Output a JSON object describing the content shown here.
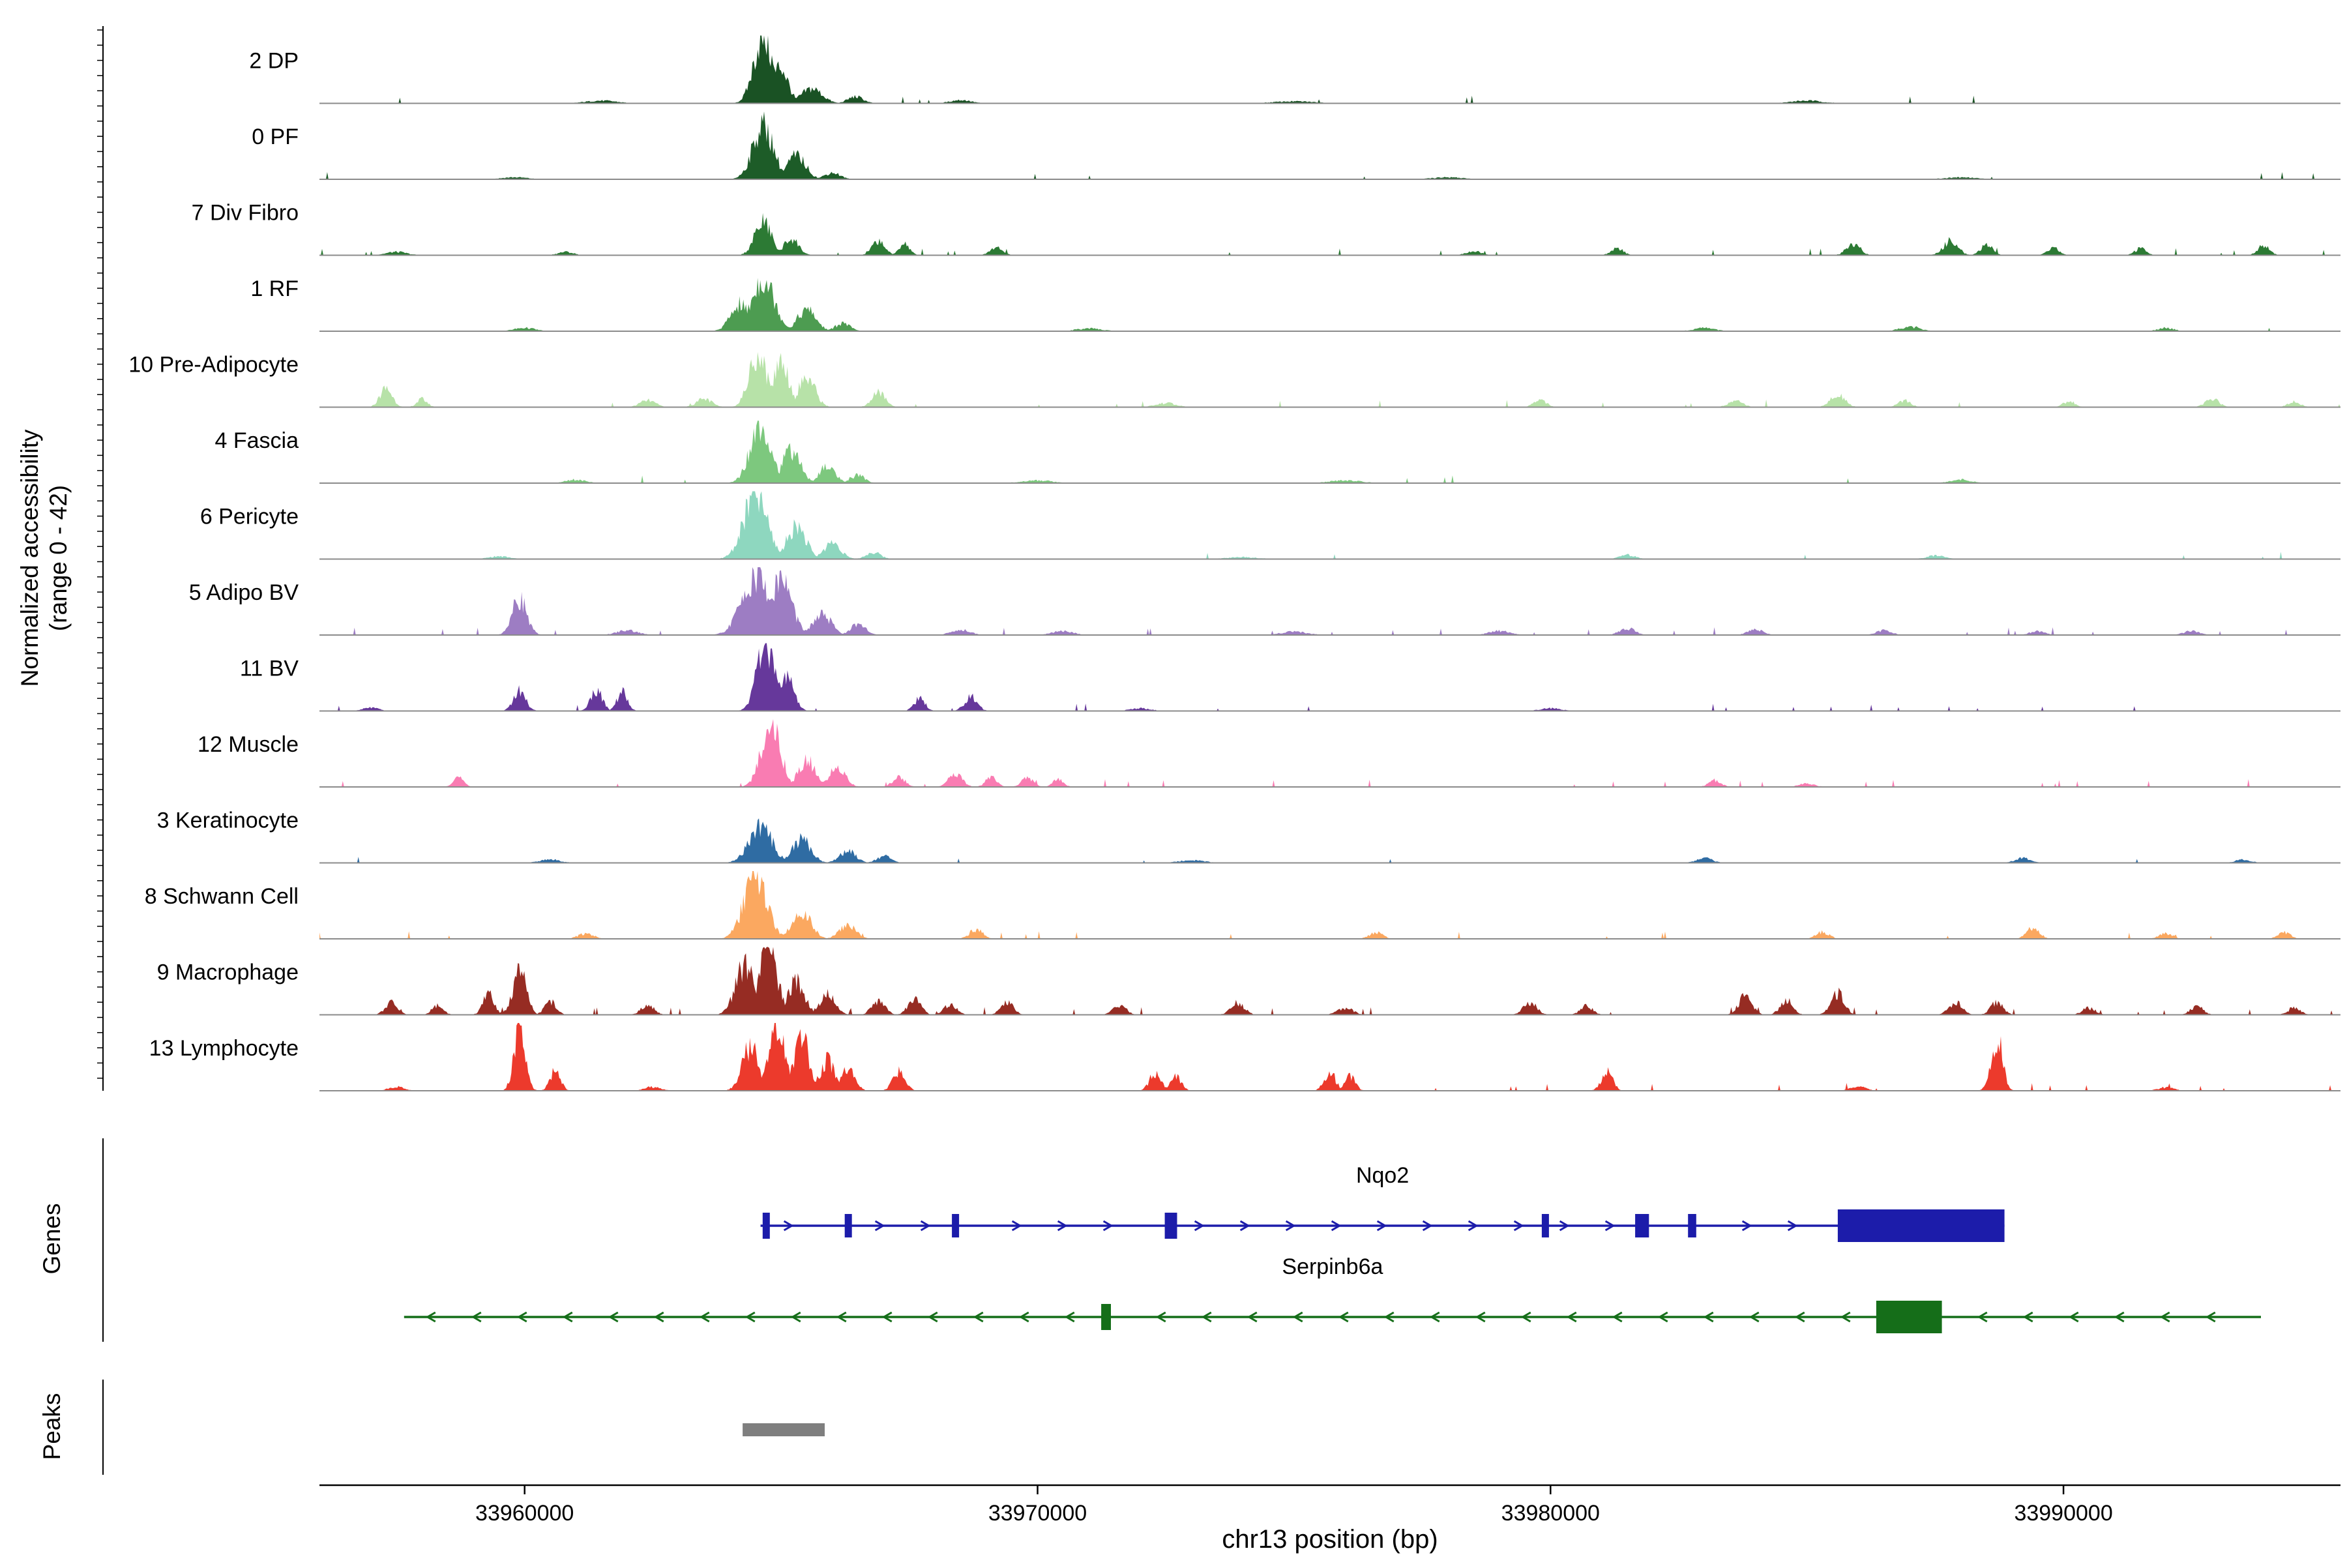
{
  "chart_data": {
    "type": "area",
    "y_axis": {
      "line1": "Normalized accessibility",
      "line2": "(range 0 - 42)"
    },
    "x_axis": {
      "label": "chr13 position (bp)",
      "min": 33956000,
      "max": 33995400,
      "ticks": [
        33960000,
        33970000,
        33980000,
        33990000
      ],
      "tick_labels": [
        "33960000",
        "33970000",
        "33980000",
        "33990000"
      ]
    },
    "tracks": [
      {
        "name": "2 DP",
        "color": "#1a5224",
        "seed": 1,
        "specks": 1,
        "peaks": [
          [
            33964650,
            1.0,
            180
          ],
          [
            33964980,
            0.55,
            150
          ],
          [
            33965600,
            0.22,
            200
          ],
          [
            33966450,
            0.1,
            150
          ],
          [
            33961500,
            0.04,
            300
          ],
          [
            33968500,
            0.05,
            200
          ],
          [
            33975000,
            0.03,
            400
          ],
          [
            33985000,
            0.04,
            300
          ]
        ]
      },
      {
        "name": "0 PF",
        "color": "#1d5c28",
        "seed": 2,
        "specks": 1,
        "peaks": [
          [
            33964650,
            0.8,
            200
          ],
          [
            33965300,
            0.35,
            180
          ],
          [
            33966000,
            0.1,
            150
          ],
          [
            33959800,
            0.03,
            250
          ],
          [
            33978000,
            0.03,
            300
          ],
          [
            33988000,
            0.03,
            300
          ]
        ]
      },
      {
        "name": "7 Div Fibro",
        "color": "#2c7a34",
        "seed": 3,
        "specks": 2,
        "peaks": [
          [
            33964650,
            0.5,
            160
          ],
          [
            33965200,
            0.25,
            140
          ],
          [
            33966900,
            0.22,
            120
          ],
          [
            33967400,
            0.18,
            100
          ],
          [
            33969200,
            0.12,
            120
          ],
          [
            33978500,
            0.06,
            150
          ],
          [
            33981300,
            0.1,
            120
          ],
          [
            33985900,
            0.18,
            130
          ],
          [
            33987800,
            0.22,
            140
          ],
          [
            33988500,
            0.15,
            120
          ],
          [
            33989800,
            0.12,
            110
          ],
          [
            33991500,
            0.1,
            110
          ],
          [
            33993900,
            0.14,
            120
          ],
          [
            33957500,
            0.05,
            200
          ],
          [
            33960800,
            0.05,
            150
          ]
        ]
      },
      {
        "name": "1 RF",
        "color": "#4d9c51",
        "seed": 4,
        "specks": 1,
        "peaks": [
          [
            33964650,
            0.78,
            220
          ],
          [
            33964200,
            0.4,
            180
          ],
          [
            33965500,
            0.32,
            180
          ],
          [
            33966200,
            0.12,
            140
          ],
          [
            33960000,
            0.05,
            200
          ],
          [
            33971000,
            0.04,
            250
          ],
          [
            33983000,
            0.05,
            200
          ],
          [
            33987000,
            0.06,
            200
          ],
          [
            33992000,
            0.05,
            150
          ]
        ]
      },
      {
        "name": "10 Pre-Adipocyte",
        "color": "#b7e2a8",
        "seed": 5,
        "specks": 2,
        "peaks": [
          [
            33964550,
            0.8,
            170
          ],
          [
            33965000,
            0.7,
            150
          ],
          [
            33965500,
            0.45,
            160
          ],
          [
            33966900,
            0.22,
            130
          ],
          [
            33957300,
            0.28,
            120
          ],
          [
            33958000,
            0.12,
            100
          ],
          [
            33962400,
            0.1,
            150
          ],
          [
            33963500,
            0.12,
            150
          ],
          [
            33972500,
            0.06,
            200
          ],
          [
            33979800,
            0.1,
            130
          ],
          [
            33983600,
            0.1,
            140
          ],
          [
            33985600,
            0.18,
            140
          ],
          [
            33986900,
            0.1,
            120
          ],
          [
            33990100,
            0.08,
            120
          ],
          [
            33992900,
            0.13,
            130
          ],
          [
            33994500,
            0.08,
            120
          ]
        ]
      },
      {
        "name": "4 Fascia",
        "color": "#7dc87e",
        "seed": 6,
        "specks": 1,
        "peaks": [
          [
            33964600,
            0.9,
            200
          ],
          [
            33965200,
            0.5,
            170
          ],
          [
            33965900,
            0.25,
            150
          ],
          [
            33966500,
            0.12,
            130
          ],
          [
            33961000,
            0.05,
            200
          ],
          [
            33970000,
            0.04,
            300
          ],
          [
            33976000,
            0.04,
            300
          ],
          [
            33988000,
            0.05,
            200
          ]
        ]
      },
      {
        "name": "6 Pericyte",
        "color": "#8ed7bf",
        "seed": 7,
        "specks": 1,
        "peaks": [
          [
            33964500,
            0.95,
            230
          ],
          [
            33965300,
            0.5,
            180
          ],
          [
            33966000,
            0.25,
            160
          ],
          [
            33966800,
            0.1,
            140
          ],
          [
            33959500,
            0.04,
            200
          ],
          [
            33974000,
            0.03,
            300
          ],
          [
            33981500,
            0.06,
            150
          ],
          [
            33987500,
            0.05,
            180
          ]
        ]
      },
      {
        "name": "5 Adipo BV",
        "color": "#9d7dc3",
        "seed": 8,
        "specks": 2,
        "peaks": [
          [
            33959900,
            0.55,
            140
          ],
          [
            33964500,
            0.9,
            260
          ],
          [
            33965000,
            0.85,
            200
          ],
          [
            33965800,
            0.3,
            180
          ],
          [
            33966500,
            0.15,
            150
          ],
          [
            33962000,
            0.07,
            200
          ],
          [
            33968500,
            0.08,
            180
          ],
          [
            33970500,
            0.06,
            200
          ],
          [
            33975000,
            0.05,
            250
          ],
          [
            33979000,
            0.06,
            200
          ],
          [
            33981500,
            0.1,
            150
          ],
          [
            33984000,
            0.08,
            150
          ],
          [
            33986500,
            0.07,
            150
          ],
          [
            33989500,
            0.06,
            150
          ],
          [
            33992500,
            0.06,
            150
          ]
        ]
      },
      {
        "name": "11 BV",
        "color": "#66389b",
        "seed": 9,
        "specks": 2,
        "peaks": [
          [
            33959900,
            0.3,
            120
          ],
          [
            33961400,
            0.32,
            110
          ],
          [
            33961900,
            0.28,
            100
          ],
          [
            33964700,
            1.0,
            170
          ],
          [
            33965100,
            0.5,
            140
          ],
          [
            33967700,
            0.18,
            110
          ],
          [
            33968700,
            0.22,
            120
          ],
          [
            33957000,
            0.05,
            150
          ],
          [
            33972000,
            0.04,
            200
          ],
          [
            33980000,
            0.04,
            200
          ]
        ]
      },
      {
        "name": "12 Muscle",
        "color": "#f97cb2",
        "seed": 10,
        "specks": 2,
        "peaks": [
          [
            33958700,
            0.15,
            100
          ],
          [
            33964800,
            1.0,
            180
          ],
          [
            33965500,
            0.4,
            160
          ],
          [
            33966100,
            0.3,
            150
          ],
          [
            33967300,
            0.15,
            120
          ],
          [
            33968400,
            0.2,
            130
          ],
          [
            33969100,
            0.15,
            110
          ],
          [
            33969800,
            0.14,
            110
          ],
          [
            33970400,
            0.12,
            100
          ],
          [
            33983200,
            0.1,
            120
          ],
          [
            33985000,
            0.05,
            150
          ]
        ]
      },
      {
        "name": "3 Keratinocyte",
        "color": "#2f6ca3",
        "seed": 11,
        "specks": 1,
        "peaks": [
          [
            33964600,
            0.55,
            220
          ],
          [
            33965400,
            0.35,
            180
          ],
          [
            33966300,
            0.18,
            160
          ],
          [
            33967000,
            0.1,
            140
          ],
          [
            33960500,
            0.05,
            200
          ],
          [
            33973000,
            0.04,
            250
          ],
          [
            33983000,
            0.07,
            150
          ],
          [
            33989200,
            0.07,
            150
          ],
          [
            33993500,
            0.05,
            150
          ]
        ]
      },
      {
        "name": "8 Schwann Cell",
        "color": "#fba860",
        "seed": 12,
        "specks": 2,
        "peaks": [
          [
            33964500,
            0.95,
            220
          ],
          [
            33965400,
            0.4,
            180
          ],
          [
            33966300,
            0.2,
            160
          ],
          [
            33968800,
            0.14,
            130
          ],
          [
            33961200,
            0.08,
            150
          ],
          [
            33976600,
            0.1,
            130
          ],
          [
            33985300,
            0.1,
            130
          ],
          [
            33989400,
            0.16,
            130
          ],
          [
            33992000,
            0.08,
            130
          ],
          [
            33994300,
            0.1,
            120
          ]
        ]
      },
      {
        "name": "9 Macrophage",
        "color": "#962c23",
        "seed": 13,
        "specks": 3,
        "peaks": [
          [
            33957400,
            0.18,
            120
          ],
          [
            33958300,
            0.14,
            110
          ],
          [
            33959300,
            0.3,
            110
          ],
          [
            33959900,
            0.65,
            130
          ],
          [
            33960500,
            0.2,
            110
          ],
          [
            33962400,
            0.14,
            130
          ],
          [
            33964300,
            0.75,
            180
          ],
          [
            33964750,
            1.0,
            170
          ],
          [
            33965300,
            0.5,
            160
          ],
          [
            33965900,
            0.3,
            150
          ],
          [
            33966900,
            0.2,
            130
          ],
          [
            33967600,
            0.25,
            120
          ],
          [
            33968300,
            0.16,
            120
          ],
          [
            33969400,
            0.2,
            120
          ],
          [
            33971600,
            0.14,
            130
          ],
          [
            33973900,
            0.18,
            130
          ],
          [
            33976000,
            0.1,
            150
          ],
          [
            33979600,
            0.18,
            130
          ],
          [
            33980700,
            0.13,
            120
          ],
          [
            33983800,
            0.28,
            130
          ],
          [
            33984600,
            0.22,
            120
          ],
          [
            33985600,
            0.32,
            130
          ],
          [
            33987900,
            0.18,
            130
          ],
          [
            33988700,
            0.18,
            120
          ],
          [
            33990500,
            0.1,
            130
          ],
          [
            33992600,
            0.13,
            120
          ],
          [
            33994500,
            0.1,
            120
          ]
        ]
      },
      {
        "name": "13 Lymphocyte",
        "color": "#ec3a2c",
        "seed": 14,
        "specks": 2,
        "peaks": [
          [
            33959900,
            0.88,
            110
          ],
          [
            33960600,
            0.3,
            100
          ],
          [
            33964400,
            0.65,
            160
          ],
          [
            33964900,
            1.0,
            160
          ],
          [
            33965400,
            0.8,
            150
          ],
          [
            33965900,
            0.45,
            140
          ],
          [
            33966300,
            0.35,
            130
          ],
          [
            33967300,
            0.28,
            120
          ],
          [
            33972300,
            0.28,
            110
          ],
          [
            33972700,
            0.22,
            100
          ],
          [
            33975700,
            0.28,
            110
          ],
          [
            33976100,
            0.22,
            100
          ],
          [
            33981100,
            0.28,
            110
          ],
          [
            33988700,
            0.8,
            110
          ],
          [
            33957500,
            0.06,
            150
          ],
          [
            33962500,
            0.06,
            150
          ],
          [
            33986000,
            0.06,
            150
          ],
          [
            33992000,
            0.05,
            150
          ]
        ]
      }
    ],
    "genes": {
      "label": "Genes",
      "items": [
        {
          "name": "Nqo2",
          "color": "#1c1caa",
          "strand": "+",
          "start": 33964600,
          "end": 33988850,
          "exons": [
            [
              33964640,
              33964780,
              40
            ],
            [
              33966240,
              33966380,
              36
            ],
            [
              33968330,
              33968470,
              36
            ],
            [
              33972480,
              33972720,
              40
            ],
            [
              33979830,
              33979970,
              36
            ],
            [
              33981650,
              33981920,
              36
            ],
            [
              33982680,
              33982840,
              36
            ],
            [
              33985600,
              33988850,
              50
            ]
          ]
        },
        {
          "name": "Serpinb6a",
          "color": "#156e19",
          "strand": "-",
          "start": 33957650,
          "end": 33993850,
          "exons": [
            [
              33971240,
              33971430,
              40
            ],
            [
              33986350,
              33987630,
              50
            ]
          ]
        }
      ]
    },
    "peaks_track": {
      "label": "Peaks",
      "color": "#7f7f7f",
      "regions": [
        [
          33964250,
          33965850
        ]
      ]
    }
  }
}
